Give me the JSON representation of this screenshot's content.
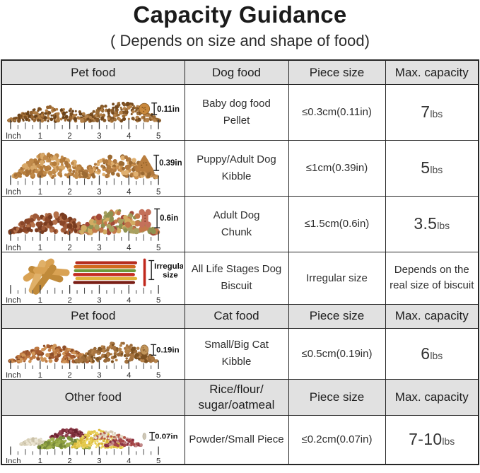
{
  "title": "Capacity Guidance",
  "subtitle": "( Depends on size and shape of food)",
  "ruler": {
    "label": "Inch",
    "ticks": [
      "1",
      "2",
      "3",
      "4",
      "5"
    ]
  },
  "sections": [
    {
      "header": [
        "Pet food",
        "Dog food",
        "Piece size",
        "Max. capacity"
      ],
      "rows": [
        {
          "name": "Baby dog food\nPellet",
          "piece_size": "≤0.3cm(0.11in)",
          "capacity_value": "7",
          "capacity_unit": "lbs",
          "capacity_text": "",
          "image": {
            "kind": "pellet",
            "size_label": "0.11in",
            "pile_colors": [
              [
                "#96632e",
                "#7c4f20",
                "#b07c42",
                "#6b431a"
              ],
              [
                "#9a6a33",
                "#835626",
                "#b5824a",
                "#74491d"
              ]
            ],
            "piece_color": "#c8883c"
          }
        },
        {
          "name": "Puppy/Adult Dog\nKibble",
          "piece_size": "≤1cm(0.39in)",
          "capacity_value": "5",
          "capacity_unit": "lbs",
          "capacity_text": "",
          "image": {
            "kind": "kibble",
            "size_label": "0.39in",
            "pile_colors": [
              [
                "#c08a4a",
                "#a87238",
                "#d8a868",
                "#b57c3a"
              ],
              [
                "#c98f4e",
                "#b0793f",
                "#e0b070",
                "#9c6a32"
              ]
            ],
            "piece_color": "#b97e3e"
          }
        },
        {
          "name": "Adult Dog\nChunk",
          "piece_size": "≤1.5cm(0.6in)",
          "capacity_value": "3.5",
          "capacity_unit": "lbs",
          "capacity_text": "",
          "image": {
            "kind": "chunk",
            "size_label": "0.6in",
            "pile_colors": [
              [
                "#9f5a38",
                "#8a4628",
                "#b5714a",
                "#7a3c20"
              ],
              [
                "#a8a060",
                "#c3794a",
                "#d2ac62",
                "#a34a38",
                "#8f9150"
              ]
            ],
            "piece_color": "#c4705a"
          }
        },
        {
          "name": "All Life Stages Dog\nBiscuit",
          "piece_size": "Irregular size",
          "capacity_value": "",
          "capacity_unit": "",
          "capacity_text": "Depends on the real size of biscuit",
          "image": {
            "kind": "biscuit",
            "size_label": "Irregular size",
            "stick_colors": [
              "#d9a253",
              "#c08a3a",
              "#e0b068"
            ],
            "stripe_colors": [
              "#b52c1e",
              "#d2691e",
              "#6f9a3a",
              "#c42b20",
              "#e0b33a",
              "#7a1f16"
            ],
            "piece_color": "#c0281c"
          }
        }
      ]
    },
    {
      "header": [
        "Pet food",
        "Cat food",
        "Piece size",
        "Max. capacity"
      ],
      "rows": [
        {
          "name": "Small/Big Cat\nKibble",
          "piece_size": "≤0.5cm(0.19in)",
          "capacity_value": "6",
          "capacity_unit": "lbs",
          "capacity_text": "",
          "image": {
            "kind": "cat",
            "size_label": "0.19in",
            "pile_colors": [
              [
                "#bf7a42",
                "#a55c30",
                "#d09558",
                "#8f4f28"
              ],
              [
                "#9a6a38",
                "#b5824a",
                "#7d5222",
                "#a87540"
              ]
            ],
            "piece_color": "#c2955a"
          }
        }
      ]
    },
    {
      "header": [
        "Other food",
        "Rice/flour/\nsugar/oatmeal",
        "Piece size",
        "Max. capacity"
      ],
      "rows": [
        {
          "name": "Powder/Small Piece",
          "piece_size": "≤0.2cm(0.07in)",
          "capacity_value": "7-10",
          "capacity_unit": "lbs",
          "capacity_text": "",
          "image": {
            "kind": "powder",
            "size_label": "0.07in",
            "pile_colors": [
              [
                "#ece5d2",
                "#d8d0b8",
                "#c9c0a8"
              ],
              [
                "#7e2d3a",
                "#934250",
                "#6b2430"
              ],
              [
                "#8fa03f",
                "#76883a",
                "#a0b050"
              ],
              [
                "#e6cb4f",
                "#d9b83a",
                "#edd76a"
              ],
              [
                "#e7dfcc",
                "#b65a4a",
                "#d8c8b0"
              ],
              [
                "#a84848",
                "#c28a8a",
                "#8a3040"
              ]
            ],
            "piece_color": "#cfc8b8"
          }
        }
      ]
    }
  ]
}
